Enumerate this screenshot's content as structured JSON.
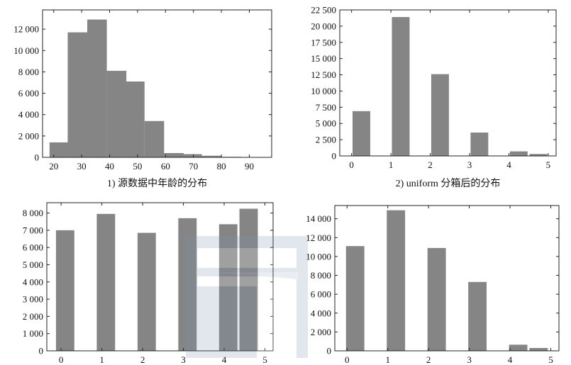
{
  "chart_data": [
    {
      "type": "bar",
      "caption": "1) 源数据中年龄的分布",
      "x": [
        22,
        28.5,
        35.5,
        42.5,
        49,
        56,
        63,
        69.5,
        76.5,
        83.5
      ],
      "bin_width": 7,
      "values": [
        1400,
        11700,
        12900,
        8100,
        7100,
        3400,
        400,
        300,
        150,
        50
      ],
      "xlim": [
        16,
        98
      ],
      "ylim": [
        0,
        13800
      ],
      "xticks": [
        20,
        30,
        40,
        50,
        60,
        70,
        80,
        90
      ],
      "xtick_labels": [
        "20",
        "30",
        "40",
        "50",
        "60",
        "70",
        "80",
        "90"
      ],
      "yticks": [
        0,
        2000,
        4000,
        6000,
        8000,
        10000,
        12000
      ],
      "ytick_labels": [
        "0",
        "2 000",
        "4 000",
        "6 000",
        "8 000",
        "10 000",
        "12 000"
      ]
    },
    {
      "type": "bar",
      "caption": "2) uniform 分箱后的分布",
      "x": [
        0.25,
        1.25,
        2.25,
        3.25,
        4.25,
        4.75
      ],
      "bin_width": 0.45,
      "values": [
        6900,
        21400,
        12600,
        3600,
        700,
        300
      ],
      "xlim": [
        -0.3,
        5.2
      ],
      "ylim": [
        0,
        22500
      ],
      "xticks": [
        0,
        1,
        2,
        3,
        4,
        5
      ],
      "xtick_labels": [
        "0",
        "1",
        "2",
        "3",
        "4",
        "5"
      ],
      "yticks": [
        0,
        2500,
        5000,
        7500,
        10000,
        12500,
        15000,
        17500,
        20000,
        22500
      ],
      "ytick_labels": [
        "0",
        "2 500",
        "5 000",
        "7 500",
        "10 000",
        "12 500",
        "15 000",
        "17 500",
        "20 000",
        "22 500"
      ]
    },
    {
      "type": "bar",
      "caption": "",
      "x": [
        0.1,
        1.1,
        2.1,
        3.1,
        4.1,
        4.6
      ],
      "bin_width": 0.45,
      "values": [
        7000,
        7950,
        6850,
        7700,
        7350,
        8250
      ],
      "xlim": [
        -0.35,
        5.2
      ],
      "ylim": [
        0,
        8600
      ],
      "xticks": [
        0,
        1,
        2,
        3,
        4,
        5
      ],
      "xtick_labels": [
        "0",
        "1",
        "2",
        "3",
        "4",
        "5"
      ],
      "yticks": [
        0,
        1000,
        2000,
        3000,
        4000,
        5000,
        6000,
        7000,
        8000
      ],
      "ytick_labels": [
        "0",
        "1 000",
        "2 000",
        "3 000",
        "4 000",
        "5 000",
        "6 000",
        "7 000",
        "8 000"
      ]
    },
    {
      "type": "bar",
      "caption": "",
      "x": [
        0.2,
        1.2,
        2.2,
        3.2,
        4.2,
        4.7
      ],
      "bin_width": 0.45,
      "values": [
        11100,
        14900,
        10900,
        7300,
        650,
        300
      ],
      "xlim": [
        -0.3,
        5.2
      ],
      "ylim": [
        0,
        15400
      ],
      "xticks": [
        0,
        1,
        2,
        3,
        4,
        5
      ],
      "xtick_labels": [
        "0",
        "1",
        "2",
        "3",
        "4",
        "5"
      ],
      "yticks": [
        0,
        2000,
        4000,
        6000,
        8000,
        10000,
        12000,
        14000
      ],
      "ytick_labels": [
        "0",
        "2 000",
        "4 000",
        "6 000",
        "8 000",
        "10 000",
        "12 000",
        "14 000"
      ]
    }
  ]
}
